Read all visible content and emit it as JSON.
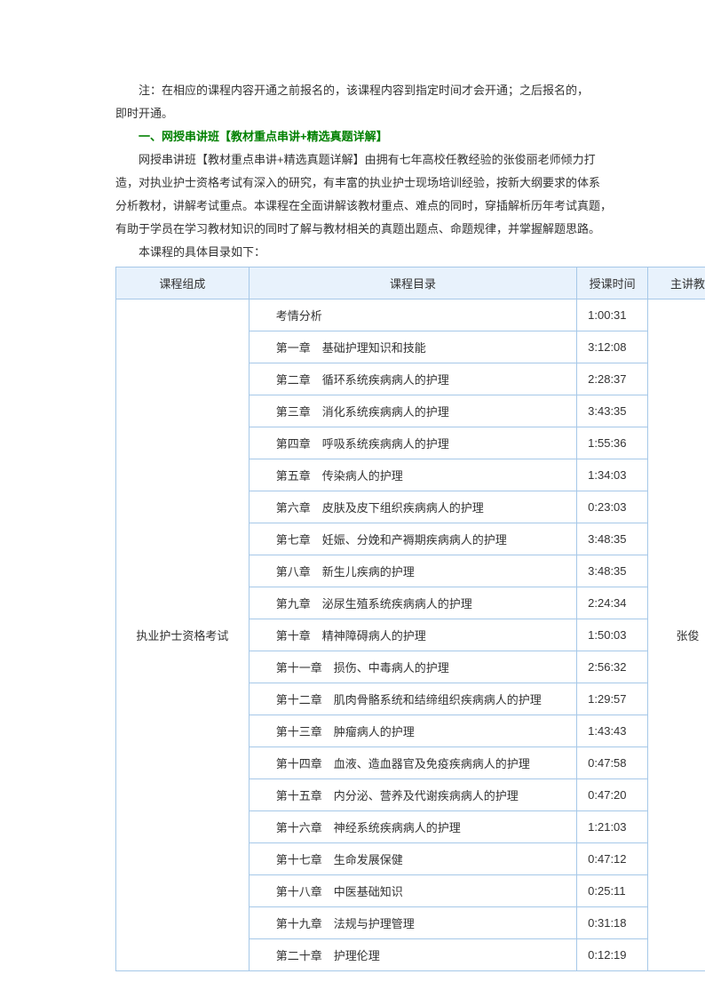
{
  "intro": {
    "note_line1": "注：在相应的课程内容开通之前报名的，该课程内容到指定时间才会开通；之后报名的，",
    "note_line2": "即时开通。",
    "section_title": "一、网授串讲班【教材重点串讲+精选真题详解】",
    "desc_line1": "网授串讲班【教材重点串讲+精选真题详解】由拥有七年高校任教经验的张俊丽老师倾力打",
    "desc_line2": "造，对执业护士资格考试有深入的研究，有丰富的执业护士现场培训经验，按新大纲要求的体系",
    "desc_line3": "分析教材，讲解考试重点。本课程在全面讲解该教材重点、难点的同时，穿插解析历年考试真题，",
    "desc_line4": "有助于学员在学习教材知识的同时了解与教材相关的真题出题点、命题规律，并掌握解题思路。",
    "toc_label": "本课程的具体目录如下："
  },
  "table": {
    "headers": {
      "col1": "课程组成",
      "col2": "课程目录",
      "col3": "授课时间",
      "col4": "主讲教"
    },
    "composition": "执业护士资格考试",
    "teacher": "张俊",
    "rows": [
      {
        "chapter": "考情分析",
        "duration": "1:00:31"
      },
      {
        "chapter": "第一章　基础护理知识和技能",
        "duration": "3:12:08"
      },
      {
        "chapter": "第二章　循环系统疾病病人的护理",
        "duration": "2:28:37"
      },
      {
        "chapter": "第三章　消化系统疾病病人的护理",
        "duration": "3:43:35"
      },
      {
        "chapter": "第四章　呼吸系统疾病病人的护理",
        "duration": "1:55:36"
      },
      {
        "chapter": "第五章　传染病人的护理",
        "duration": "1:34:03"
      },
      {
        "chapter": "第六章　皮肤及皮下组织疾病病人的护理",
        "duration": "0:23:03"
      },
      {
        "chapter": "第七章　妊娠、分娩和产褥期疾病病人的护理",
        "duration": "3:48:35"
      },
      {
        "chapter": "第八章　新生儿疾病的护理",
        "duration": "3:48:35"
      },
      {
        "chapter": "第九章　泌尿生殖系统疾病病人的护理",
        "duration": "2:24:34"
      },
      {
        "chapter": "第十章　精神障碍病人的护理",
        "duration": "1:50:03"
      },
      {
        "chapter": "第十一章　损伤、中毒病人的护理",
        "duration": "2:56:32"
      },
      {
        "chapter": "第十二章　肌肉骨骼系统和结缔组织疾病病人的护理",
        "duration": "1:29:57"
      },
      {
        "chapter": "第十三章　肿瘤病人的护理",
        "duration": "1:43:43"
      },
      {
        "chapter": "第十四章　血液、造血器官及免疫疾病病人的护理",
        "duration": "0:47:58"
      },
      {
        "chapter": "第十五章　内分泌、营养及代谢疾病病人的护理",
        "duration": "0:47:20"
      },
      {
        "chapter": "第十六章　神经系统疾病病人的护理",
        "duration": "1:21:03"
      },
      {
        "chapter": "第十七章　生命发展保健",
        "duration": "0:47:12"
      },
      {
        "chapter": "第十八章　中医基础知识",
        "duration": "0:25:11"
      },
      {
        "chapter": "第十九章　法规与护理管理",
        "duration": "0:31:18"
      },
      {
        "chapter": "第二十章　护理伦理",
        "duration": "0:12:19"
      }
    ]
  },
  "styles": {
    "header_bg": "#e8f2fc",
    "border_color": "#a6c8e8",
    "title_color": "#008000",
    "text_color": "#333333",
    "font_size": 13
  }
}
